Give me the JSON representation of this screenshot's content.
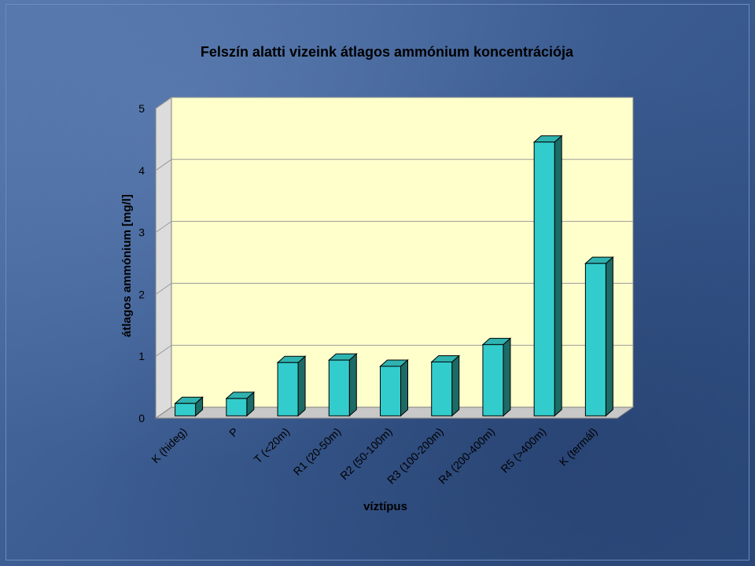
{
  "chart_data": {
    "type": "bar",
    "title": "Felszín alatti vizeink átlagos ammónium koncentrációja",
    "xlabel": "víztípus",
    "ylabel": "átlagos ammónium [mg/l]",
    "categories": [
      "K (hideg)",
      "P",
      "T (<20m)",
      "R1 (20-50m)",
      "R2 (50-100m)",
      "R3 (100-200m)",
      "R4 (200-400m)",
      "R5 (>400m)",
      "K (termál)"
    ],
    "values": [
      0.2,
      0.28,
      0.86,
      0.9,
      0.8,
      0.87,
      1.15,
      4.42,
      2.46
    ],
    "ylim": [
      0,
      5
    ],
    "yticks": [
      "0",
      "1",
      "2",
      "3",
      "4",
      "5"
    ],
    "grid": true,
    "legend": "none",
    "colors": {
      "bar_front": "#33cccc",
      "bar_top": "#2fb3b0",
      "bar_side": "#1c6b66",
      "plot_back": "#ffffcc",
      "plot_left_wall": "#dcdcdc",
      "plot_floor": "#c8c8c8",
      "background": "#3d5f93"
    }
  }
}
